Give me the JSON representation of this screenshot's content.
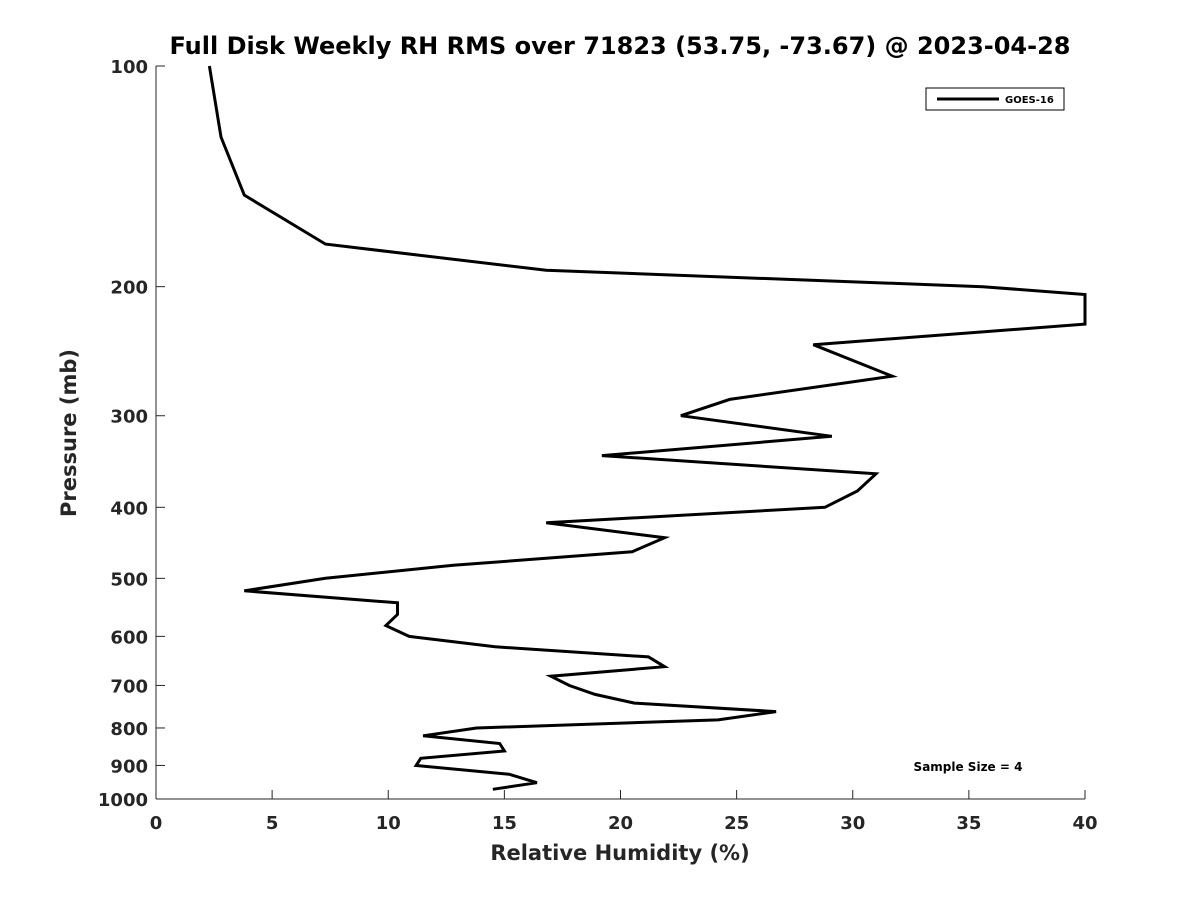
{
  "chart_data": {
    "type": "line",
    "title": "Full Disk Weekly RH RMS over 71823 (53.75, -73.67) @ 2023-04-28",
    "xlabel": "Relative Humidity (%)",
    "ylabel": "Pressure (mb)",
    "xlim": [
      0,
      40
    ],
    "ylim": [
      100,
      1000
    ],
    "y_scale": "log",
    "y_reversed": true,
    "x_ticks": [
      0,
      5,
      10,
      15,
      20,
      25,
      30,
      35,
      40
    ],
    "y_ticks": [
      100,
      200,
      300,
      400,
      500,
      600,
      700,
      800,
      900,
      1000
    ],
    "grid": false,
    "legend_position": "top-right",
    "annotation": "Sample Size = 4",
    "series": [
      {
        "name": "GOES-16",
        "color": "#000000",
        "points": [
          [
            2.3,
            100
          ],
          [
            2.8,
            125
          ],
          [
            3.8,
            150
          ],
          [
            7.3,
            175
          ],
          [
            16.8,
            190
          ],
          [
            35.6,
            200
          ],
          [
            40,
            205
          ],
          [
            40,
            225
          ],
          [
            28.3,
            240
          ],
          [
            31.7,
            265
          ],
          [
            24.7,
            285
          ],
          [
            22.6,
            300
          ],
          [
            29.1,
            320
          ],
          [
            19.2,
            340
          ],
          [
            31.0,
            360
          ],
          [
            30.2,
            380
          ],
          [
            28.8,
            400
          ],
          [
            16.8,
            420
          ],
          [
            21.9,
            440
          ],
          [
            20.5,
            460
          ],
          [
            12.8,
            480
          ],
          [
            7.3,
            500
          ],
          [
            3.8,
            520
          ],
          [
            10.4,
            540
          ],
          [
            10.4,
            560
          ],
          [
            9.9,
            580
          ],
          [
            10.9,
            600
          ],
          [
            14.6,
            620
          ],
          [
            21.2,
            640
          ],
          [
            21.9,
            660
          ],
          [
            17.0,
            680
          ],
          [
            17.8,
            700
          ],
          [
            18.9,
            720
          ],
          [
            20.6,
            740
          ],
          [
            26.7,
            760
          ],
          [
            24.2,
            780
          ],
          [
            13.8,
            800
          ],
          [
            11.5,
            820
          ],
          [
            14.8,
            840
          ],
          [
            15.0,
            860
          ],
          [
            11.4,
            880
          ],
          [
            11.2,
            900
          ],
          [
            15.2,
            925
          ],
          [
            16.4,
            950
          ],
          [
            14.5,
            970
          ]
        ]
      }
    ]
  }
}
